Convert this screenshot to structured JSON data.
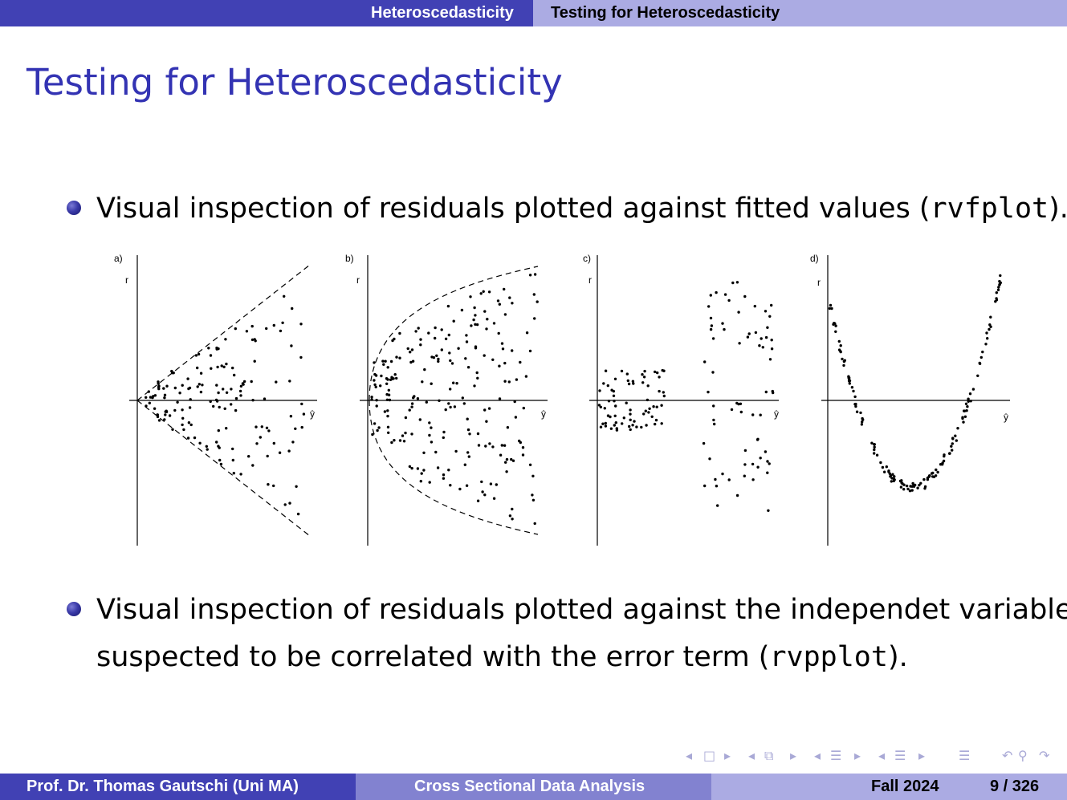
{
  "header": {
    "section": "Heteroscedasticity",
    "subsection": "Testing for Heteroscedasticity"
  },
  "frame": {
    "title": "Testing for Heteroscedasticity",
    "bullets": [
      {
        "prefix": "Visual inspection of residuals plotted against fitted values (",
        "code": "rvfplot",
        "suffix": ")."
      },
      {
        "line1": "Visual inspection of residuals plotted against the independet variable",
        "line2_prefix": "suspected to be correlated with the error term (",
        "code": "rvpplot",
        "suffix": ")."
      }
    ]
  },
  "figure": {
    "panels": [
      {
        "label": "a)",
        "y_label": "r",
        "x_label": "ŷ"
      },
      {
        "label": "b)",
        "y_label": "r",
        "x_label": "ŷ"
      },
      {
        "label": "c)",
        "y_label": "r",
        "x_label": "ŷ"
      },
      {
        "label": "d)",
        "y_label": "r",
        "x_label": "ŷ"
      }
    ]
  },
  "footer": {
    "author": "Prof. Dr. Thomas Gautschi  (Uni MA)",
    "course": "Cross Sectional Data Analysis",
    "term": "Fall 2024",
    "page": "9 / 326"
  },
  "colors": {
    "dark_blue": "#4141b4",
    "mid_blue": "#8282d0",
    "light_blue": "#ababe3",
    "title_blue": "#3333b3"
  }
}
